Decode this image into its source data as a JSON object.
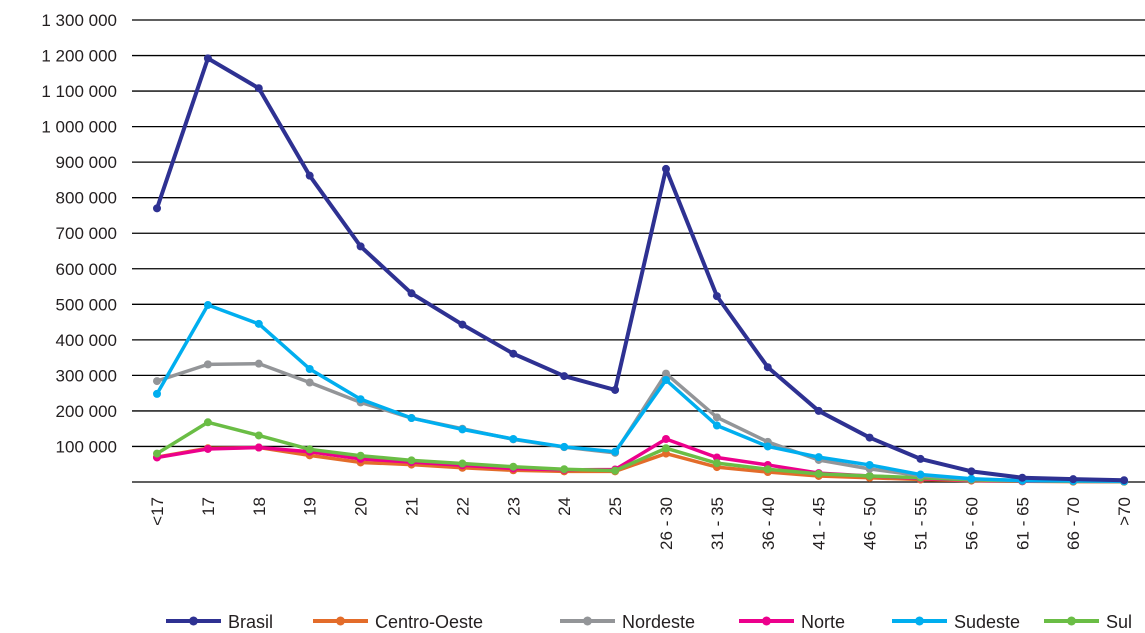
{
  "chart_data": {
    "type": "line",
    "categories": [
      "<17",
      "17",
      "18",
      "19",
      "20",
      "21",
      "22",
      "23",
      "24",
      "25",
      "26 - 30",
      "31 - 35",
      "36 - 40",
      "41 - 45",
      "46 - 50",
      "51 - 55",
      "56 - 60",
      "61 - 65",
      "66 - 70",
      ">70"
    ],
    "ylim": [
      0,
      1300000
    ],
    "yticks": [
      100000,
      200000,
      300000,
      400000,
      500000,
      600000,
      700000,
      800000,
      900000,
      1000000,
      1100000,
      1200000,
      1300000
    ],
    "ytick_labels": [
      "100 000",
      "200 000",
      "300 000",
      "400 000",
      "500 000",
      "600 000",
      "700 000",
      "800 000",
      "900 000",
      "1 000 000",
      "1 100 000",
      "1 200 000",
      "1 300 000"
    ],
    "grid": true,
    "legend_position": "bottom",
    "series": [
      {
        "name": "Brasil",
        "color": "#2e3192",
        "values": [
          770000,
          1192000,
          1108000,
          862000,
          663000,
          531000,
          443000,
          361000,
          298000,
          259000,
          881000,
          523000,
          323000,
          200000,
          125000,
          65000,
          30000,
          12000,
          8000,
          5000
        ]
      },
      {
        "name": "Centro-Oeste",
        "color": "#e36c2a",
        "values": [
          70000,
          95000,
          97000,
          75000,
          55000,
          49000,
          40000,
          33000,
          30000,
          30000,
          80000,
          42000,
          28000,
          17000,
          12000,
          7000,
          4000,
          2000,
          1000,
          1000
        ]
      },
      {
        "name": "Nordeste",
        "color": "#939598",
        "values": [
          284000,
          331000,
          333000,
          280000,
          224000,
          180000,
          150000,
          120000,
          98000,
          82000,
          305000,
          182000,
          113000,
          62000,
          37000,
          18000,
          8000,
          4000,
          3000,
          2000
        ]
      },
      {
        "name": "Norte",
        "color": "#ec008c",
        "values": [
          69000,
          93000,
          97000,
          85000,
          65000,
          56000,
          47000,
          38000,
          34000,
          35000,
          121000,
          69000,
          48000,
          25000,
          17000,
          10000,
          5000,
          2000,
          2000,
          1000
        ]
      },
      {
        "name": "Sudeste",
        "color": "#00aeef",
        "values": [
          248000,
          498000,
          445000,
          318000,
          233000,
          180000,
          148000,
          121000,
          99000,
          85000,
          287000,
          159000,
          100000,
          70000,
          48000,
          21000,
          9000,
          4000,
          3000,
          2000
        ]
      },
      {
        "name": "Sul",
        "color": "#6abd45",
        "values": [
          80000,
          168000,
          131000,
          92000,
          74000,
          61000,
          52000,
          43000,
          36000,
          32000,
          95000,
          53000,
          36000,
          23000,
          17000,
          12000,
          6000,
          3000,
          2000,
          1000
        ]
      }
    ]
  }
}
